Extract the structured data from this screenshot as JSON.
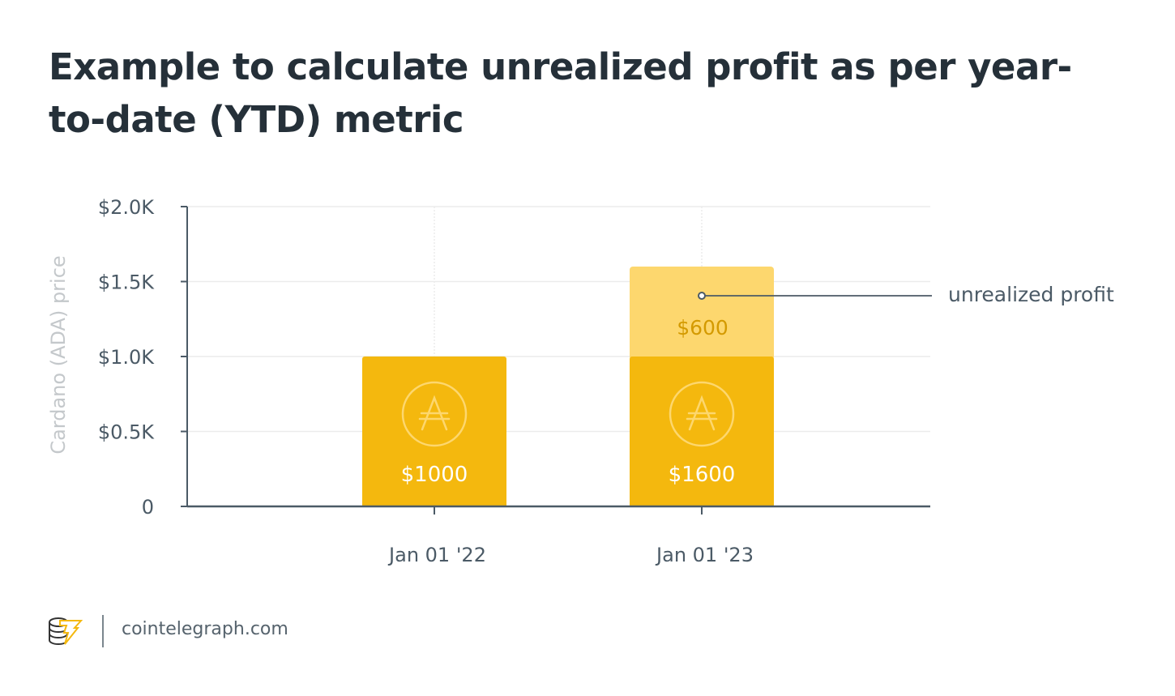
{
  "title": "Example to calculate unrealized profit as per year-to-date (YTD) metric",
  "chart_data": {
    "type": "bar",
    "stacked": true,
    "title": "Example to calculate unrealized profit as per year-to-date (YTD) metric",
    "xlabel": "",
    "ylabel": "Cardano (ADA) price",
    "ylim": [
      0,
      2000
    ],
    "yticks": [
      0,
      500,
      1000,
      1500,
      2000
    ],
    "ytick_labels": [
      "0",
      "$0.5K",
      "$1.0K",
      "$1.5K",
      "$2.0K"
    ],
    "categories": [
      "Jan 01 '22",
      "Jan 01 '23"
    ],
    "series": [
      {
        "name": "base value",
        "values": [
          1000,
          1000
        ],
        "color": "#f4b80e"
      },
      {
        "name": "unrealized profit",
        "values": [
          0,
          600
        ],
        "color": "#fdd76e"
      }
    ],
    "data_labels": [
      "$1000",
      "$1600"
    ],
    "profit_label": "$600",
    "annotation": "unrealized profit",
    "grid": true
  },
  "footer": {
    "site": "cointelegraph.com"
  }
}
